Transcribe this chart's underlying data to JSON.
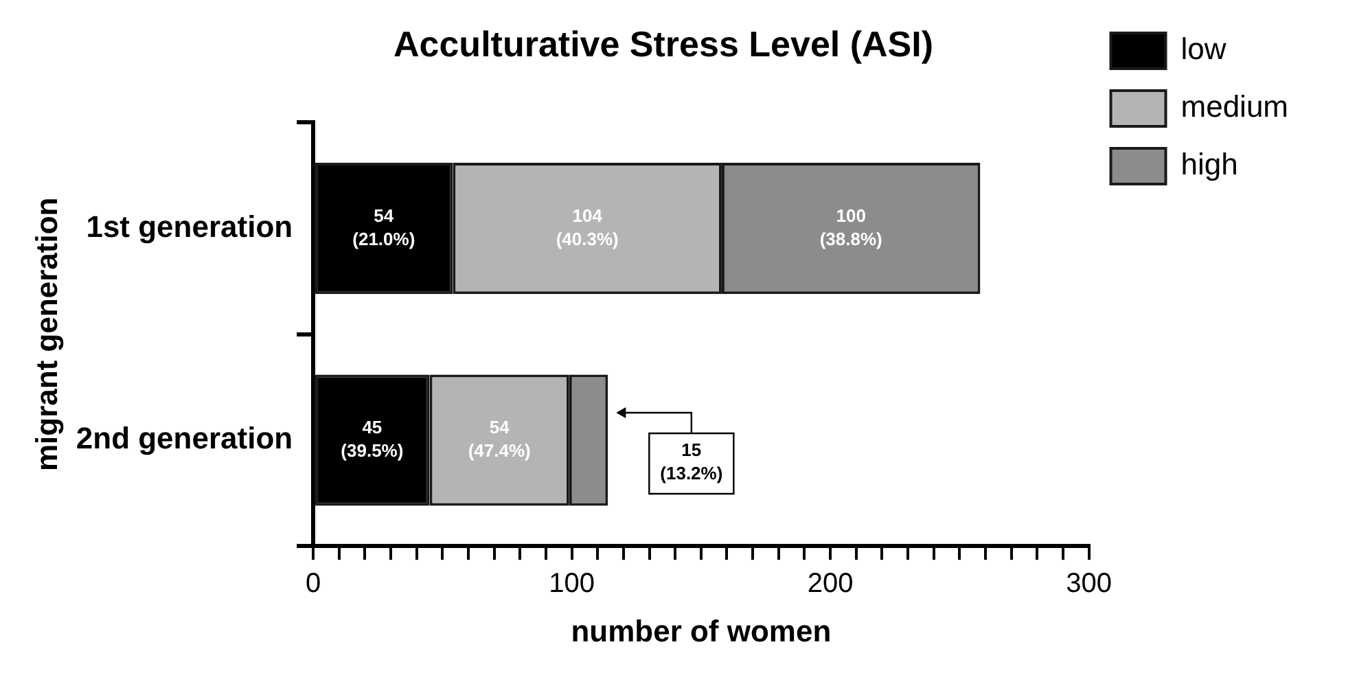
{
  "chart_data": {
    "type": "bar",
    "orientation": "horizontal",
    "stacked": true,
    "title": "Acculturative Stress Level (ASI)",
    "xlabel": "number of women",
    "ylabel": "migrant generation",
    "categories": [
      "1st generation",
      "2nd generation"
    ],
    "series": [
      {
        "name": "low",
        "color": "#000000",
        "values": [
          54,
          45
        ],
        "value_labels": [
          "54\n(21.0%)",
          "45\n(39.5%)"
        ]
      },
      {
        "name": "medium",
        "color": "#b4b4b4",
        "values": [
          104,
          54
        ],
        "value_labels": [
          "104\n(40.3%)",
          "54\n(47.4%)"
        ]
      },
      {
        "name": "high",
        "color": "#8c8c8c",
        "values": [
          100,
          15
        ],
        "value_labels": [
          "100\n(38.8%)",
          "15\n(13.2%)"
        ]
      }
    ],
    "xlim": [
      0,
      300
    ],
    "xticks": [
      0,
      {
        "value": 10,
        "label": null
      },
      {
        "value": 20,
        "label": null
      },
      {
        "value": 30,
        "label": null
      },
      {
        "value": 40,
        "label": null
      },
      {
        "value": 50,
        "label": null
      },
      {
        "value": 60,
        "label": null
      },
      {
        "value": 70,
        "label": null
      },
      {
        "value": 80,
        "label": null
      },
      {
        "value": 90,
        "label": null
      },
      100,
      {
        "value": 110,
        "label": null
      },
      {
        "value": 120,
        "label": null
      },
      {
        "value": 130,
        "label": null
      },
      {
        "value": 140,
        "label": null
      },
      {
        "value": 150,
        "label": null
      },
      {
        "value": 160,
        "label": null
      },
      {
        "value": 170,
        "label": null
      },
      {
        "value": 180,
        "label": null
      },
      {
        "value": 190,
        "label": null
      },
      200,
      {
        "value": 210,
        "label": null
      },
      {
        "value": 220,
        "label": null
      },
      {
        "value": 230,
        "label": null
      },
      {
        "value": 240,
        "label": null
      },
      {
        "value": 250,
        "label": null
      },
      {
        "value": 260,
        "label": null
      },
      {
        "value": 270,
        "label": null
      },
      {
        "value": 280,
        "label": null
      },
      {
        "value": 290,
        "label": null
      },
      300
    ],
    "grid": false,
    "legend": "right"
  }
}
